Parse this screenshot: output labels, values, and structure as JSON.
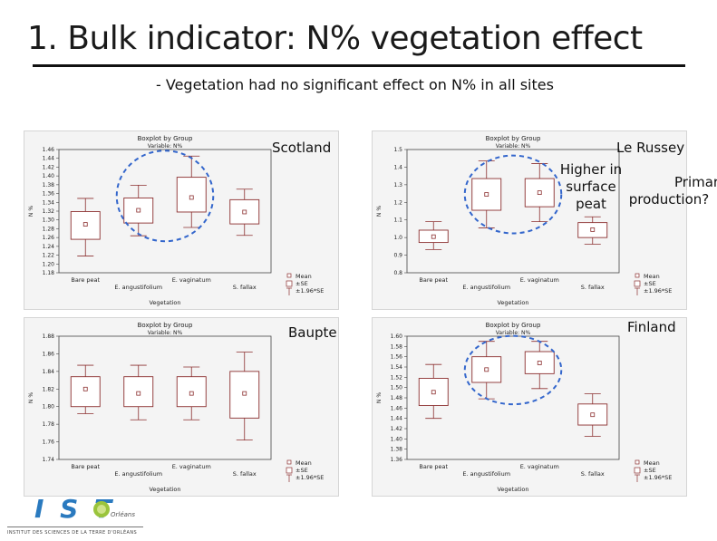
{
  "slide": {
    "title": "1. Bulk indicator: N% vegetation effect",
    "subtitle": "- Vegetation had no significant effect on N% in all sites",
    "notes": {
      "higher": [
        "Higher in",
        "surface",
        "peat"
      ],
      "primary": [
        "Primary",
        "production?"
      ]
    }
  },
  "logo": {
    "text": "I S T",
    "suffix": "Orléans",
    "caption": "INSTITUT DES SCIENCES DE LA TERRE D'ORLÉANS"
  },
  "colors": {
    "box": "#8b2f2f",
    "circle": "#3366cc",
    "panel_bg": "#f4f4f4"
  },
  "chart_data": [
    {
      "site": "Scotland",
      "type": "box",
      "title": "Boxplot by Group",
      "subtitle": "Variable: N%",
      "ylabel": "N %",
      "xlabel": "Vegetation",
      "ylim": [
        1.18,
        1.46
      ],
      "yticks": [
        "1.18",
        "1.20",
        "1.22",
        "1.24",
        "1.26",
        "1.28",
        "1.30",
        "1.32",
        "1.34",
        "1.36",
        "1.38",
        "1.40",
        "1.42",
        "1.44",
        "1.46"
      ],
      "categories": [
        "Bare peat",
        "E. angustifolium",
        "E. vaginatum",
        "S. fallax"
      ],
      "boxes": [
        {
          "mean": 1.29,
          "q1": 1.256,
          "q3": 1.319,
          "lo": 1.218,
          "hi": 1.349
        },
        {
          "mean": 1.322,
          "q1": 1.293,
          "q3": 1.35,
          "lo": 1.264,
          "hi": 1.379
        },
        {
          "mean": 1.351,
          "q1": 1.318,
          "q3": 1.397,
          "lo": 1.283,
          "hi": 1.445
        },
        {
          "mean": 1.318,
          "q1": 1.291,
          "q3": 1.346,
          "lo": 1.265,
          "hi": 1.37
        }
      ],
      "legend": [
        "Mean",
        "±SE",
        "±1.96*SE"
      ]
    },
    {
      "site": "Le Russey",
      "type": "box",
      "title": "Boxplot by Group",
      "subtitle": "Variable: N%",
      "ylabel": "N %",
      "xlabel": "Vegetation",
      "ylim": [
        0.8,
        1.5
      ],
      "yticks": [
        "0.8",
        "0.9",
        "1.0",
        "1.1",
        "1.2",
        "1.3",
        "1.4",
        "1.5"
      ],
      "categories": [
        "Bare peat",
        "E. angustifolium",
        "E. vaginatum",
        "S. fallax"
      ],
      "boxes": [
        {
          "mean": 1.005,
          "q1": 0.972,
          "q3": 1.042,
          "lo": 0.932,
          "hi": 1.09
        },
        {
          "mean": 1.245,
          "q1": 1.155,
          "q3": 1.335,
          "lo": 1.055,
          "hi": 1.435
        },
        {
          "mean": 1.255,
          "q1": 1.175,
          "q3": 1.335,
          "lo": 1.09,
          "hi": 1.42
        },
        {
          "mean": 1.045,
          "q1": 1.0,
          "q3": 1.085,
          "lo": 0.962,
          "hi": 1.118
        }
      ],
      "legend": [
        "Mean",
        "±SE",
        "±1.96*SE"
      ]
    },
    {
      "site": "Baupte",
      "type": "box",
      "title": "Boxplot by Group",
      "subtitle": "Variable: N%",
      "ylabel": "N %",
      "xlabel": "Vegetation",
      "ylim": [
        1.74,
        1.88
      ],
      "yticks": [
        "1.74",
        "1.76",
        "1.78",
        "1.80",
        "1.82",
        "1.84",
        "1.86",
        "1.88"
      ],
      "categories": [
        "Bare peat",
        "E. angustifolium",
        "E. vaginatum",
        "S. fallax"
      ],
      "boxes": [
        {
          "mean": 1.82,
          "q1": 1.8,
          "q3": 1.834,
          "lo": 1.792,
          "hi": 1.847
        },
        {
          "mean": 1.815,
          "q1": 1.8,
          "q3": 1.834,
          "lo": 1.785,
          "hi": 1.847
        },
        {
          "mean": 1.815,
          "q1": 1.8,
          "q3": 1.834,
          "lo": 1.785,
          "hi": 1.845
        },
        {
          "mean": 1.815,
          "q1": 1.787,
          "q3": 1.84,
          "lo": 1.762,
          "hi": 1.862
        }
      ],
      "legend": [
        "Mean",
        "±SE",
        "±1.96*SE"
      ]
    },
    {
      "site": "Finland",
      "type": "box",
      "title": "Boxplot by Group",
      "subtitle": "Variable: N%",
      "ylabel": "N %",
      "xlabel": "Vegetation",
      "ylim": [
        1.36,
        1.6
      ],
      "yticks": [
        "1.36",
        "1.38",
        "1.40",
        "1.42",
        "1.44",
        "1.46",
        "1.48",
        "1.50",
        "1.52",
        "1.54",
        "1.56",
        "1.58",
        "1.60"
      ],
      "categories": [
        "Bare peat",
        "E. angustifolium",
        "E. vaginatum",
        "S. fallax"
      ],
      "boxes": [
        {
          "mean": 1.491,
          "q1": 1.465,
          "q3": 1.518,
          "lo": 1.44,
          "hi": 1.545
        },
        {
          "mean": 1.535,
          "q1": 1.51,
          "q3": 1.56,
          "lo": 1.478,
          "hi": 1.59
        },
        {
          "mean": 1.548,
          "q1": 1.527,
          "q3": 1.57,
          "lo": 1.498,
          "hi": 1.59
        },
        {
          "mean": 1.447,
          "q1": 1.427,
          "q3": 1.468,
          "lo": 1.405,
          "hi": 1.488
        }
      ],
      "legend": [
        "Mean",
        "±SE",
        "±1.96*SE"
      ]
    }
  ]
}
